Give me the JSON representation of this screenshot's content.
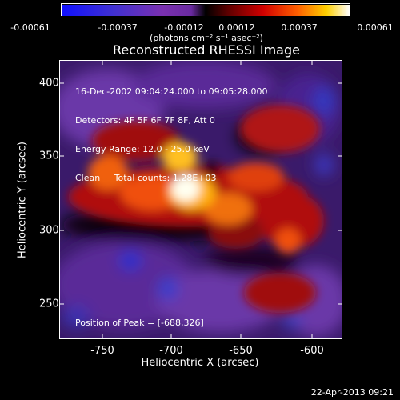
{
  "colorbar": {
    "ticks": [
      "-0.00061",
      "-0.00037",
      "-0.00012",
      "0.00012",
      "0.00037",
      "0.00061"
    ],
    "units": "(photons cm⁻² s⁻¹ asec⁻²)"
  },
  "title": "Reconstructed RHESSI Image",
  "info": {
    "line1": "16-Dec-2002 09:04:24.000 to 09:05:28.000",
    "line2": "Detectors: 4F 5F 6F 7F 8F, Att 0",
    "line3": "Energy Range: 12.0 - 25.0 keV",
    "line4": "Clean     Total counts: 1.28E+03"
  },
  "peak_label": "Position of Peak = [-688,326]",
  "x_axis": {
    "label": "Heliocentric X (arcsec)",
    "ticks": [
      "-750",
      "-700",
      "-650",
      "-600"
    ]
  },
  "y_axis": {
    "label": "Heliocentric Y (arcsec)",
    "ticks": [
      "400",
      "350",
      "300",
      "250"
    ]
  },
  "timestamp": "22-Apr-2013 09:21",
  "colors": {
    "low": "#2030c0",
    "mid_low": "#5a2a90",
    "mid": "#8a4ab0",
    "high": "#d01010",
    "higher": "#f07010",
    "peak": "#fffff0"
  }
}
